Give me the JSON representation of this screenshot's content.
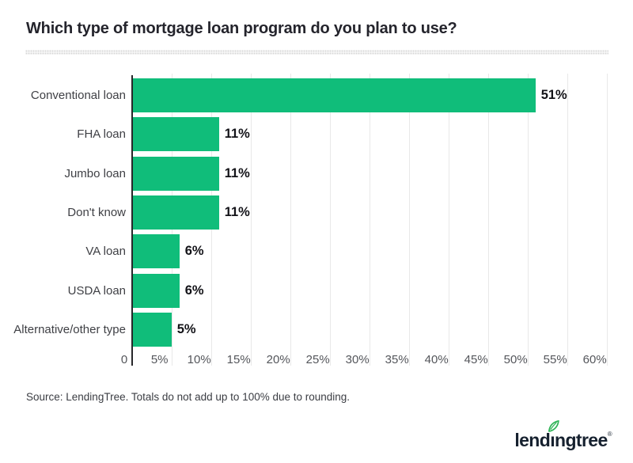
{
  "title": "Which type of mortgage loan program do you plan to use?",
  "source_note": "Source: LendingTree. Totals do not add up to 100% due to rounding.",
  "logo": {
    "full_text": "lendingtree",
    "part1": "lend",
    "dotless_i": "ı",
    "part2": "ngtree",
    "registered": "®"
  },
  "colors": {
    "bar_green": "#10bd7a",
    "leaf_green": "#2fb457",
    "logo_navy": "#16212f",
    "axis_dark": "#27272a",
    "gridline": "#e8e8e8",
    "title_text": "#24242c",
    "value_label": "#131318",
    "category_label": "#3f4045",
    "tick_label": "#54565b",
    "divider_dot": "#d7d7d7",
    "background": "#ffffff"
  },
  "chart_data": {
    "type": "bar",
    "orientation": "horizontal",
    "title": "Which type of mortgage loan program do you plan to use?",
    "categories": [
      "Conventional loan",
      "FHA loan",
      "Jumbo loan",
      "Don't know",
      "VA loan",
      "USDA loan",
      "Alternative/other type"
    ],
    "values": [
      51,
      11,
      11,
      11,
      6,
      6,
      5
    ],
    "value_labels": [
      "51%",
      "11%",
      "11%",
      "11%",
      "6%",
      "6%",
      "5%"
    ],
    "x_tick_labels": [
      "0",
      "5%",
      "10%",
      "15%",
      "20%",
      "25%",
      "30%",
      "35%",
      "40%",
      "45%",
      "50%",
      "55%",
      "60%"
    ],
    "xlim": [
      0,
      60
    ],
    "x_tick_step": 5,
    "grid": true,
    "legend": false,
    "bar_color": "#10bd7a",
    "source": "LendingTree"
  }
}
